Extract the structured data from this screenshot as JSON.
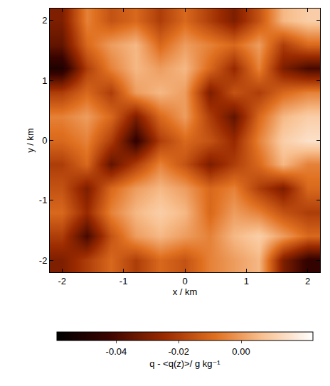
{
  "chart_data": {
    "type": "heatmap",
    "x_label": "x / km",
    "y_label": "y / km",
    "colorbar_label": "q - <q(z)>/ g kg⁻¹",
    "xlim": [
      -2.2,
      2.2
    ],
    "ylim": [
      -2.2,
      2.2
    ],
    "xticks": [
      -2,
      -1,
      0,
      1,
      2
    ],
    "yticks": [
      -2,
      -1,
      0,
      1,
      2
    ],
    "x": [
      -2.0,
      -1.6,
      -1.2,
      -0.8,
      -0.4,
      0.0,
      0.4,
      0.8,
      1.2,
      1.6,
      2.0
    ],
    "y": [
      -2.0,
      -1.6,
      -1.2,
      -0.8,
      -0.4,
      0.0,
      0.4,
      0.8,
      1.2,
      1.6,
      2.0
    ],
    "z": [
      [
        -0.03,
        -0.02,
        -0.01,
        -0.02,
        -0.01,
        -0.015,
        -0.005,
        0.0,
        0.005,
        -0.03,
        -0.045
      ],
      [
        -0.02,
        -0.04,
        -0.015,
        0.0,
        0.005,
        0.0,
        -0.005,
        0.005,
        0.01,
        0.0,
        -0.01
      ],
      [
        -0.01,
        -0.025,
        -0.005,
        0.005,
        0.01,
        0.005,
        -0.01,
        0.0,
        -0.005,
        -0.015,
        -0.02
      ],
      [
        -0.015,
        -0.03,
        -0.01,
        0.0,
        0.005,
        0.0,
        -0.01,
        -0.005,
        -0.02,
        -0.03,
        -0.01
      ],
      [
        -0.02,
        -0.01,
        -0.035,
        -0.02,
        -0.005,
        -0.015,
        -0.03,
        -0.02,
        -0.01,
        0.005,
        -0.005
      ],
      [
        -0.01,
        -0.005,
        -0.02,
        -0.045,
        -0.02,
        -0.01,
        -0.015,
        -0.025,
        -0.005,
        0.01,
        0.015
      ],
      [
        -0.005,
        0.0,
        -0.01,
        -0.03,
        -0.01,
        0.0,
        -0.02,
        -0.035,
        -0.01,
        0.005,
        0.01
      ],
      [
        -0.02,
        -0.01,
        -0.02,
        0.0,
        0.005,
        0.0,
        -0.03,
        -0.015,
        -0.02,
        -0.01,
        -0.005
      ],
      [
        -0.05,
        -0.02,
        -0.005,
        0.005,
        0.0,
        0.005,
        -0.01,
        -0.025,
        -0.005,
        -0.03,
        -0.04
      ],
      [
        -0.035,
        -0.01,
        0.0,
        0.005,
        -0.01,
        0.0,
        -0.005,
        -0.01,
        0.0,
        -0.02,
        -0.01
      ],
      [
        -0.03,
        -0.005,
        -0.015,
        -0.01,
        -0.02,
        -0.01,
        -0.02,
        -0.03,
        -0.015,
        0.005,
        0.01
      ]
    ],
    "zlim": [
      -0.059,
      0.023
    ],
    "zticks": [
      -0.04,
      -0.02,
      {
        "value": 0,
        "label": "0.00"
      }
    ]
  }
}
